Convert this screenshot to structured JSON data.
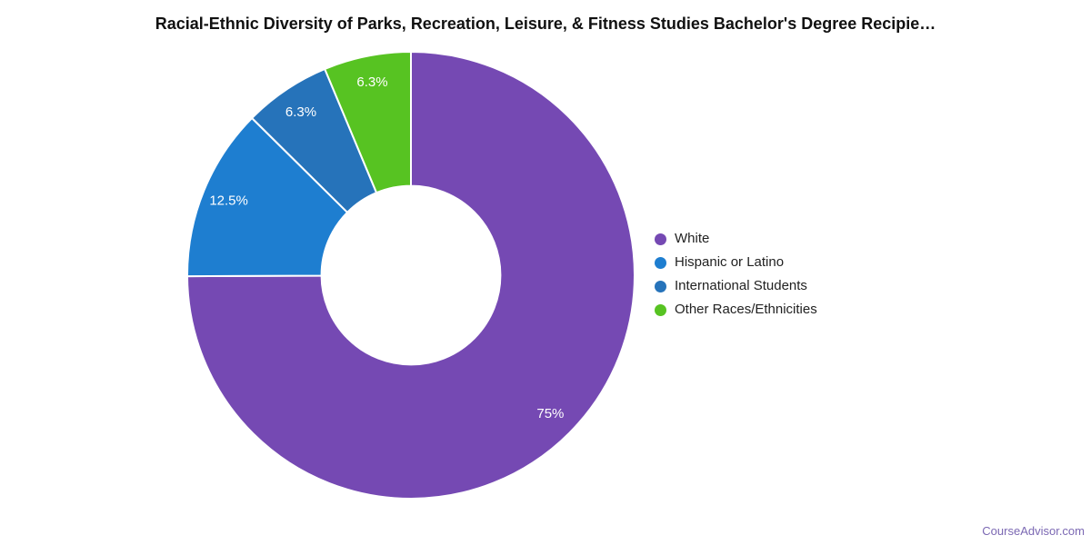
{
  "page": {
    "background": "#ffffff",
    "title_color": "#111111"
  },
  "chart_data": {
    "type": "pie",
    "title": "Racial-Ethnic Diversity of Parks, Recreation, Leisure, & Fitness Studies Bachelor's Degree Recipie…",
    "donut": true,
    "inner_radius_ratio": 0.4,
    "start_angle_deg": 0,
    "direction": "clockwise",
    "legend_position": "right",
    "grid": false,
    "slice_label_color": "#ffffff",
    "slices": [
      {
        "label": "White",
        "value": 75,
        "display": "75%",
        "color": "#7549b3"
      },
      {
        "label": "Hispanic or Latino",
        "value": 12.5,
        "display": "12.5%",
        "color": "#1e7ed0"
      },
      {
        "label": "International Students",
        "value": 6.3,
        "display": "6.3%",
        "color": "#2673ba"
      },
      {
        "label": "Other Races/Ethnicities",
        "value": 6.3,
        "display": "6.3%",
        "color": "#57c322"
      }
    ]
  },
  "watermark": {
    "text": "CourseAdvisor.com",
    "color": "#7b68b3"
  }
}
